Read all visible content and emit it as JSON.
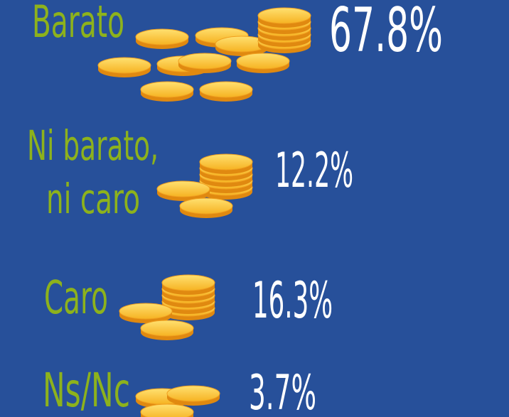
{
  "items": [
    {
      "label_lines": [
        "Barato"
      ],
      "value": "67.8%"
    },
    {
      "label_lines": [
        "Ni barato,",
        "ni caro"
      ],
      "value": "12.2%"
    },
    {
      "label_lines": [
        "Caro"
      ],
      "value": "16.3%"
    },
    {
      "label_lines": [
        "Ns/Nc"
      ],
      "value": "3.7%"
    }
  ]
}
